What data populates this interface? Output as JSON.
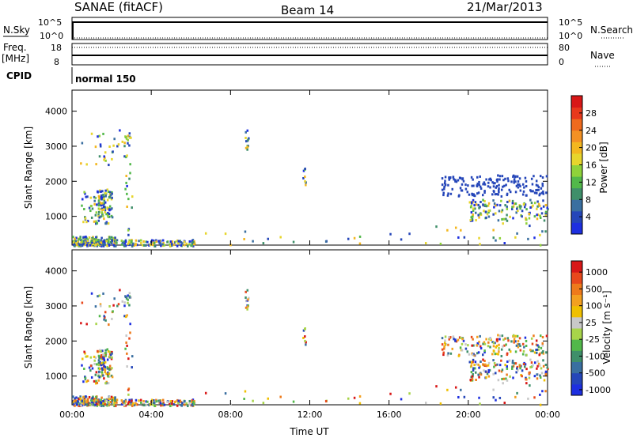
{
  "header": {
    "title_left": "SANAE (fitACF)",
    "title_center": "Beam 14",
    "title_right": "21/Mar/2013"
  },
  "strips": {
    "nsky_label": "N.Sky",
    "nsky_ticks": [
      "10^5",
      "10^0"
    ],
    "nsearch_label": "N.Search",
    "nsearch_ticks": [
      "10^5",
      "10^0"
    ],
    "freq_label": "Freq.",
    "freq_unit": "[MHz]",
    "freq_ticks": [
      "18",
      "8"
    ],
    "nave_label": "Nave",
    "nave_ticks": [
      "80",
      "0"
    ],
    "cpid_label": "CPID",
    "cpid_value": "normal 150"
  },
  "colors": {
    "power_scale": [
      "#1d2fe0",
      "#2546b9",
      "#3a6fa0",
      "#3f8f6a",
      "#52b84a",
      "#8fd23a",
      "#e7d52c",
      "#f3b71f",
      "#f39124",
      "#ef6a1d",
      "#e8381c",
      "#d81717"
    ],
    "velocity_scale": [
      "#1d2fe0",
      "#2546b9",
      "#3a6fa0",
      "#3f8f6a",
      "#52b84a",
      "#a8d44a",
      "#c8c8c8",
      "#f0c000",
      "#f3a020",
      "#ee7a1b",
      "#e8481c",
      "#d81717"
    ]
  },
  "chart_data": [
    {
      "type": "heatmap",
      "ylabel": "Slant Range [km]",
      "xlabel": "Time UT",
      "y_ticks": [
        "1000",
        "2000",
        "3000",
        "4000"
      ],
      "x_ticks": [
        "00:00",
        "04:00",
        "08:00",
        "12:00",
        "16:00",
        "20:00",
        "00:00"
      ],
      "xlim": [
        0,
        24
      ],
      "ylim": [
        180,
        4600
      ],
      "colorbar": {
        "label": "Power [dB]",
        "ticks": [
          "4",
          "8",
          "12",
          "16",
          "20",
          "24",
          "28"
        ]
      }
    },
    {
      "type": "heatmap",
      "ylabel": "Slant Range [km]",
      "xlabel": "Time UT",
      "y_ticks": [
        "1000",
        "2000",
        "3000",
        "4000"
      ],
      "x_ticks": [
        "00:00",
        "04:00",
        "08:00",
        "12:00",
        "16:00",
        "20:00",
        "00:00"
      ],
      "xlim": [
        0,
        24
      ],
      "ylim": [
        180,
        4600
      ],
      "colorbar": {
        "label": "Velocity [m s⁻¹]",
        "ticks": [
          "1000",
          "500",
          "100",
          "25",
          "-25",
          "-100",
          "-500",
          "-1000"
        ]
      }
    }
  ]
}
